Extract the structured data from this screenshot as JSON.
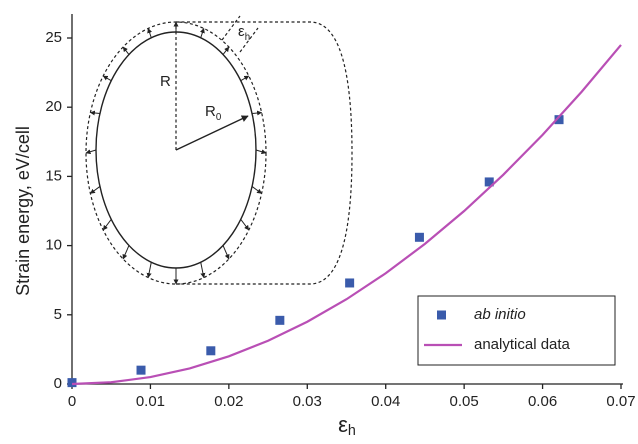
{
  "chart_data": {
    "type": "scatter",
    "ylabel": "Strain energy, eV/cell",
    "xlabel": {
      "text": "ε",
      "subscript": "h"
    },
    "xlim": [
      0,
      0.07
    ],
    "xticks": [
      0,
      0.01,
      0.02,
      0.03,
      0.04,
      0.05,
      0.06,
      0.07
    ],
    "ylim": [
      0,
      25
    ],
    "yticks": [
      0,
      5,
      10,
      15,
      20,
      25
    ],
    "grid": false,
    "legend": "lower right",
    "series": [
      {
        "name": "ab initio",
        "type": "scatter",
        "color": "#3a5bab",
        "x": [
          0,
          0.0088,
          0.0177,
          0.0265,
          0.0354,
          0.0443,
          0.0532,
          0.0621
        ],
        "values": [
          0.1,
          1.0,
          2.4,
          4.6,
          7.3,
          10.6,
          14.6,
          19.1
        ]
      },
      {
        "name": "analytical data",
        "type": "line",
        "color": "#b94fb5",
        "x": [
          0,
          0.005,
          0.01,
          0.015,
          0.02,
          0.025,
          0.03,
          0.035,
          0.04,
          0.045,
          0.05,
          0.055,
          0.06,
          0.065,
          0.07
        ],
        "values": [
          0,
          0.125,
          0.5,
          1.125,
          2,
          3.125,
          4.5,
          6.125,
          8,
          10.125,
          12.5,
          15.125,
          18,
          21.125,
          24.5
        ]
      }
    ],
    "annotations": [
      {
        "text": "R"
      },
      {
        "text": "R",
        "subscript": "0"
      },
      {
        "text": "ε",
        "subscript": "h"
      }
    ]
  }
}
